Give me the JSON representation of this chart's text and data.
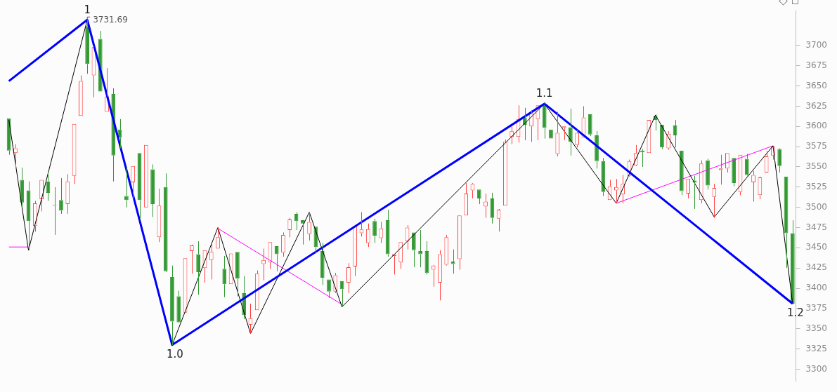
{
  "chart_data": {
    "type": "candlestick",
    "categories": [
      null,
      null,
      null,
      null,
      null,
      null,
      null,
      null,
      null,
      null,
      null,
      null,
      null,
      null,
      null,
      null,
      null,
      null,
      null,
      null,
      null,
      null,
      null,
      null,
      null,
      null,
      null,
      null,
      null,
      null,
      null,
      null,
      null,
      null,
      null,
      null,
      null,
      null,
      null,
      null,
      null,
      null,
      null,
      null,
      null,
      null,
      null,
      null,
      null,
      null,
      null,
      null,
      null,
      null,
      null,
      null,
      null,
      null,
      null,
      null,
      null,
      null,
      null,
      null,
      null,
      null,
      null,
      null,
      null,
      null,
      null,
      null,
      null,
      null,
      null,
      null,
      null,
      null,
      null,
      null,
      null,
      null,
      null,
      null,
      null,
      null,
      null,
      null,
      null,
      null,
      null,
      null,
      null,
      null,
      null,
      null,
      null,
      null,
      null,
      null,
      null,
      null,
      null,
      null,
      null,
      null,
      null,
      null,
      null,
      null,
      null,
      null,
      null,
      null,
      null,
      null,
      null,
      null,
      null,
      null,
      null
    ],
    "ohlc": [
      [
        3610,
        3610,
        3565,
        3570
      ],
      [
        3567,
        3578,
        3548,
        3573
      ],
      [
        3534,
        3549,
        3500,
        3506
      ],
      [
        3521,
        3532,
        3447,
        3483
      ],
      [
        3477,
        3508,
        3470,
        3505
      ],
      [
        3510,
        3534,
        3495,
        3534
      ],
      [
        3532,
        3543,
        3508,
        3518
      ],
      [
        3503,
        3525,
        3466,
        3502
      ],
      [
        3509,
        3536,
        3492,
        3496
      ],
      [
        3504,
        3541,
        3492,
        3532
      ],
      [
        3539,
        3603,
        3529,
        3603
      ],
      [
        3613,
        3663,
        3613,
        3656
      ],
      [
        3724,
        3731.69,
        3665,
        3677
      ],
      [
        3663,
        3699,
        3636,
        3698
      ],
      [
        3708,
        3718,
        3643,
        3643
      ],
      [
        3618,
        3672,
        3618,
        3637
      ],
      [
        3640,
        3647,
        3532,
        3564
      ],
      [
        3596,
        3609,
        3573,
        3586
      ],
      [
        3514,
        3550,
        3500,
        3509
      ],
      [
        3531,
        3551,
        3511,
        3551
      ],
      [
        3567,
        3567,
        3485,
        3509
      ],
      [
        3500,
        3577,
        3500,
        3577
      ],
      [
        3547,
        3553,
        3488,
        3504
      ],
      [
        3463,
        3523,
        3457,
        3502
      ],
      [
        3525,
        3542,
        3420,
        3421
      ],
      [
        3414,
        3428,
        3330,
        3359
      ],
      [
        3390,
        3397,
        3357,
        3358
      ],
      [
        3370,
        3437,
        3370,
        3437
      ],
      [
        3446,
        3454,
        3418,
        3453
      ],
      [
        3442,
        3458,
        3392,
        3420
      ],
      [
        3425,
        3447,
        3407,
        3447
      ],
      [
        3435,
        3454,
        3411,
        3445
      ],
      [
        3449,
        3475,
        3449,
        3463
      ],
      [
        3424,
        3440,
        3389,
        3405
      ],
      [
        3405,
        3443,
        3405,
        3443
      ],
      [
        3445,
        3445,
        3390,
        3412
      ],
      [
        3394,
        3415,
        3362,
        3367
      ],
      [
        3355,
        3381,
        3344,
        3363
      ],
      [
        3373,
        3422,
        3373,
        3418
      ],
      [
        3430,
        3449,
        3410,
        3435
      ],
      [
        3432,
        3457,
        3424,
        3457
      ],
      [
        3452,
        3452,
        3421,
        3442
      ],
      [
        3444,
        3469,
        3439,
        3466
      ],
      [
        3472,
        3487,
        3463,
        3485
      ],
      [
        3492,
        3494,
        3472,
        3483
      ],
      [
        3484,
        3484,
        3454,
        3480
      ],
      [
        3467,
        3494,
        3459,
        3482
      ],
      [
        3476,
        3476,
        3443,
        3451
      ],
      [
        3446,
        3456,
        3404,
        3413
      ],
      [
        3411,
        3411,
        3388,
        3396
      ],
      [
        3396,
        3419,
        3394,
        3416
      ],
      [
        3409,
        3409,
        3377,
        3399
      ],
      [
        3407,
        3431,
        3394,
        3426
      ],
      [
        3427,
        3477,
        3415,
        3477
      ],
      [
        3468,
        3494,
        3464,
        3473
      ],
      [
        3456,
        3480,
        3451,
        3473
      ],
      [
        3483,
        3486,
        3456,
        3465
      ],
      [
        3462,
        3482,
        3456,
        3474
      ],
      [
        3484,
        3497,
        3439,
        3442
      ],
      [
        3440,
        3442,
        3417,
        3442
      ],
      [
        3432,
        3457,
        3424,
        3457
      ],
      [
        3458,
        3478,
        3448,
        3475
      ],
      [
        3469,
        3469,
        3426,
        3447
      ],
      [
        3446,
        3472,
        3426,
        3442
      ],
      [
        3446,
        3458,
        3417,
        3419
      ],
      [
        3423,
        3429,
        3402,
        3428
      ],
      [
        3407,
        3447,
        3385,
        3442
      ],
      [
        3429,
        3466,
        3428,
        3463
      ],
      [
        3433,
        3448,
        3418,
        3430
      ],
      [
        3436,
        3490,
        3423,
        3490
      ],
      [
        3490,
        3530,
        3490,
        3517
      ],
      [
        3521,
        3530,
        3511,
        3529
      ],
      [
        3522,
        3522,
        3504,
        3511
      ],
      [
        3501,
        3517,
        3487,
        3507
      ],
      [
        3511,
        3518,
        3480,
        3487
      ],
      [
        3486,
        3498,
        3470,
        3497
      ],
      [
        3502,
        3584,
        3502,
        3581
      ],
      [
        3587,
        3600,
        3578,
        3594
      ],
      [
        3587,
        3626,
        3580,
        3609
      ],
      [
        3611,
        3623,
        3583,
        3602
      ],
      [
        3600,
        3620,
        3581,
        3616
      ],
      [
        3609,
        3626,
        3583,
        3626
      ],
      [
        3627,
        3630,
        3585,
        3598
      ],
      [
        3596,
        3596,
        3585,
        3585
      ],
      [
        3566,
        3618,
        3563,
        3592
      ],
      [
        3598,
        3600,
        3583,
        3600
      ],
      [
        3599,
        3622,
        3564,
        3581
      ],
      [
        3577,
        3596,
        3574,
        3592
      ],
      [
        3586,
        3625,
        3586,
        3611
      ],
      [
        3615,
        3615,
        3588,
        3590
      ],
      [
        3589,
        3594,
        3548,
        3557
      ],
      [
        3557,
        3561,
        3514,
        3519
      ],
      [
        3509,
        3534,
        3509,
        3526
      ],
      [
        3521,
        3535,
        3505,
        3525
      ],
      [
        3516,
        3540,
        3505,
        3529
      ],
      [
        3539,
        3559,
        3538,
        3557
      ],
      [
        3552,
        3577,
        3551,
        3567
      ],
      [
        3570,
        3572,
        3550,
        3568
      ],
      [
        3567,
        3608,
        3567,
        3608
      ],
      [
        3613,
        3615,
        3595,
        3608
      ],
      [
        3602,
        3602,
        3572,
        3574
      ],
      [
        3573,
        3594,
        3571,
        3591
      ],
      [
        3601,
        3608,
        3574,
        3589
      ],
      [
        3570,
        3570,
        3515,
        3520
      ],
      [
        3517,
        3535,
        3511,
        3535
      ],
      [
        3533,
        3539,
        3498,
        3531
      ],
      [
        3509,
        3558,
        3505,
        3554
      ],
      [
        3558,
        3560,
        3522,
        3527
      ],
      [
        3513,
        3529,
        3487,
        3524
      ],
      [
        3546,
        3565,
        3528,
        3548
      ],
      [
        3548,
        3567,
        3543,
        3567
      ],
      [
        3561,
        3561,
        3526,
        3530
      ],
      [
        3519,
        3565,
        3515,
        3565
      ],
      [
        3560,
        3566,
        3539,
        3540
      ],
      [
        3531,
        3545,
        3507,
        3540
      ],
      [
        3515,
        3538,
        3510,
        3537
      ],
      [
        3543,
        3569,
        3543,
        3563
      ],
      [
        3564,
        3576,
        3559,
        3575
      ],
      [
        3572,
        3573,
        3543,
        3551
      ],
      [
        3538,
        3538,
        3425,
        3468
      ],
      [
        3468,
        3484,
        3380,
        3381
      ]
    ],
    "colors": [
      "#339933",
      "#ff4040",
      "#339933",
      "#339933",
      "#ff4040",
      "#ff4040",
      "#339933",
      "#339933",
      "#339933",
      "#ff4040",
      "#ff4040",
      "#ff4040",
      "#339933",
      "#ff4040",
      "#339933",
      "#ff4040",
      "#339933",
      "#339933",
      "#339933",
      "#ff4040",
      "#339933",
      "#ff4040",
      "#339933",
      "#ff4040",
      "#339933",
      "#339933",
      "#339933",
      "#ff4040",
      "#ff4040",
      "#339933",
      "#ff4040",
      "#ff4040",
      "#ff4040",
      "#339933",
      "#ff4040",
      "#339933",
      "#339933",
      "#ff4040",
      "#ff4040",
      "#ff4040",
      "#ff4040",
      "#339933",
      "#ff4040",
      "#ff4040",
      "#339933",
      "#339933",
      "#ff4040",
      "#339933",
      "#339933",
      "#339933",
      "#ff4040",
      "#339933",
      "#ff4040",
      "#ff4040",
      "#ff4040",
      "#ff4040",
      "#339933",
      "#ff4040",
      "#339933",
      "#ff4040",
      "#ff4040",
      "#ff4040",
      "#339933",
      "#339933",
      "#339933",
      "#ff4040",
      "#ff4040",
      "#ff4040",
      "#339933",
      "#ff4040",
      "#ff4040",
      "#ff4040",
      "#339933",
      "#ff4040",
      "#339933",
      "#ff4040",
      "#ff4040",
      "#ff4040",
      "#ff4040",
      "#339933",
      "#ff4040",
      "#ff4040",
      "#339933",
      "#339933",
      "#ff4040",
      "#ff4040",
      "#339933",
      "#ff4040",
      "#ff4040",
      "#339933",
      "#339933",
      "#339933",
      "#ff4040",
      "#ff4040",
      "#ff4040",
      "#ff4040",
      "#ff4040",
      "#339933",
      "#ff4040",
      "#339933",
      "#339933",
      "#ff4040",
      "#339933",
      "#339933",
      "#ff4040",
      "#339933",
      "#ff4040",
      "#339933",
      "#ff4040",
      "#ff4040",
      "#ff4040",
      "#339933",
      "#ff4040",
      "#339933",
      "#ff4040",
      "#ff4040",
      "#ff4040",
      "#ff4040",
      "#339933",
      "#339933",
      "#339933"
    ],
    "value_labels": [
      null,
      null,
      null,
      null,
      null,
      null,
      null,
      null,
      null,
      null,
      null,
      null,
      "3731.69",
      null,
      null,
      null,
      null,
      null,
      null,
      null,
      null,
      null,
      null,
      null,
      null,
      null,
      null,
      null,
      null,
      null,
      null,
      null,
      null,
      null,
      null,
      null,
      null,
      null,
      null,
      null,
      null,
      null,
      null,
      null,
      null,
      null,
      null,
      null,
      null,
      null,
      null,
      null,
      null,
      null,
      null,
      null,
      null,
      null,
      null,
      null,
      null,
      null,
      null,
      null,
      null,
      null,
      null,
      null,
      null,
      null,
      null,
      null,
      null,
      null,
      null,
      null,
      null,
      null,
      null,
      null,
      null,
      null,
      null,
      null,
      null,
      null,
      null,
      null,
      null,
      null,
      null,
      null,
      null,
      null,
      null,
      null,
      null,
      null,
      null,
      null,
      null,
      null,
      null,
      null,
      null,
      null,
      null,
      null,
      null,
      null,
      null,
      null,
      null,
      null,
      null,
      null,
      null,
      null,
      null,
      null,
      null
    ],
    "ylim": [
      3285,
      3743
    ],
    "yticks": [
      3300,
      3325,
      3350,
      3375,
      3400,
      3425,
      3450,
      3475,
      3500,
      3525,
      3550,
      3575,
      3600,
      3625,
      3650,
      3675,
      3700
    ],
    "tick_labels": "y",
    "annotations": [
      {
        "text": "1",
        "y": 3731.69
      },
      {
        "text": "1.0",
        "y": 3330
      },
      {
        "text": "1.1",
        "y": 3628
      },
      {
        "text": "1.2",
        "y": 3381
      }
    ],
    "marker": "none",
    "series": [
      {
        "type": "line",
        "color": "#0000ff",
        "values": [
          3656,
          null,
          null,
          null,
          null,
          null,
          null,
          null,
          null,
          null,
          null,
          null,
          3731.69,
          null,
          null,
          null,
          null,
          null,
          null,
          null,
          null,
          null,
          null,
          null,
          null,
          3330,
          null,
          null,
          null,
          null,
          null,
          null,
          null,
          null,
          null,
          null,
          null,
          null,
          null,
          null,
          null,
          null,
          null,
          null,
          null,
          null,
          null,
          null,
          null,
          null,
          null,
          null,
          null,
          null,
          null,
          null,
          null,
          null,
          null,
          null,
          null,
          null,
          null,
          null,
          null,
          null,
          null,
          null,
          null,
          null,
          null,
          null,
          null,
          null,
          null,
          null,
          null,
          null,
          null,
          null,
          null,
          null,
          3628,
          null,
          null,
          null,
          null,
          null,
          null,
          null,
          null,
          null,
          null,
          null,
          null,
          null,
          null,
          null,
          null,
          null,
          null,
          null,
          null,
          null,
          null,
          null,
          null,
          null,
          null,
          null,
          null,
          null,
          null,
          null,
          null,
          null,
          null,
          null,
          null,
          null,
          3381
        ]
      },
      {
        "type": "line",
        "color": "#000000",
        "values": [
          3608,
          null,
          null,
          3447,
          null,
          null,
          null,
          null,
          null,
          null,
          null,
          null,
          3731.69,
          null,
          null,
          null,
          null,
          null,
          null,
          null,
          null,
          null,
          null,
          null,
          null,
          3330,
          null,
          null,
          null,
          null,
          null,
          null,
          3475,
          null,
          null,
          null,
          null,
          3344,
          null,
          null,
          null,
          null,
          null,
          null,
          null,
          null,
          3494,
          null,
          null,
          null,
          null,
          3377,
          null,
          null,
          null,
          null,
          null,
          null,
          null,
          null,
          null,
          null,
          null,
          null,
          null,
          null,
          null,
          null,
          null,
          null,
          null,
          null,
          null,
          null,
          null,
          null,
          null,
          null,
          null,
          null,
          null,
          null,
          3628,
          null,
          null,
          null,
          null,
          null,
          null,
          null,
          null,
          null,
          null,
          3505,
          null,
          null,
          null,
          null,
          null,
          3614,
          null,
          null,
          null,
          null,
          null,
          null,
          null,
          null,
          3488,
          null,
          null,
          null,
          null,
          null,
          null,
          null,
          null,
          3576,
          null,
          null,
          3381
        ]
      },
      {
        "type": "line",
        "color": "#ff00ff",
        "values": [
          3451,
          null,
          null,
          3451,
          null,
          null,
          null,
          null,
          null,
          null,
          null,
          null,
          null,
          null,
          null,
          null,
          null,
          null,
          null,
          null,
          null,
          null,
          null,
          null,
          null,
          null,
          null,
          null,
          null,
          null,
          null,
          null,
          null,
          null,
          null,
          null,
          null,
          null,
          null,
          null,
          null,
          null,
          null,
          null,
          null,
          null,
          null,
          null,
          null,
          null,
          null,
          null,
          null,
          null,
          null,
          null,
          null,
          null,
          null,
          null,
          null,
          null,
          null,
          null,
          null,
          null,
          null,
          null,
          null,
          null,
          null,
          null,
          null,
          null,
          null,
          null,
          null,
          null,
          null,
          null,
          null,
          null,
          null,
          null,
          null,
          null,
          null,
          null,
          null,
          null,
          null,
          null,
          null,
          null,
          null,
          null,
          null,
          null,
          null,
          null,
          null,
          null,
          null,
          null,
          null,
          null,
          null,
          null,
          null,
          null,
          null,
          null,
          null,
          null,
          null,
          null,
          null,
          null,
          null,
          null,
          null
        ]
      },
      {
        "type": "line",
        "color": "#ff00ff",
        "values": [
          null,
          null,
          null,
          null,
          null,
          null,
          null,
          null,
          null,
          null,
          null,
          null,
          null,
          null,
          null,
          null,
          null,
          null,
          null,
          null,
          null,
          null,
          null,
          null,
          null,
          null,
          null,
          null,
          null,
          null,
          null,
          null,
          3474,
          null,
          null,
          null,
          null,
          null,
          null,
          null,
          null,
          null,
          null,
          null,
          null,
          null,
          null,
          null,
          null,
          null,
          null,
          3380,
          null,
          null,
          null,
          null,
          null,
          null,
          null,
          null,
          null,
          null,
          null,
          null,
          null,
          null,
          null,
          null,
          null,
          null,
          null,
          null,
          null,
          null,
          null,
          null,
          null,
          null,
          null,
          null,
          null,
          null,
          null,
          null,
          null,
          null,
          null,
          null,
          null,
          null,
          null,
          null,
          null,
          null,
          null,
          null,
          null,
          null,
          null,
          null,
          null,
          null,
          null,
          null,
          null,
          null,
          null,
          null,
          null,
          null,
          null,
          null,
          null,
          null,
          null,
          null,
          null,
          null,
          null,
          null,
          null
        ]
      },
      {
        "type": "line",
        "color": "#ff00ff",
        "values": [
          null,
          null,
          null,
          null,
          null,
          null,
          null,
          null,
          null,
          null,
          null,
          null,
          null,
          null,
          null,
          null,
          null,
          null,
          null,
          null,
          null,
          null,
          null,
          null,
          null,
          null,
          null,
          null,
          null,
          null,
          null,
          null,
          null,
          null,
          null,
          null,
          null,
          null,
          null,
          null,
          null,
          null,
          null,
          null,
          null,
          null,
          null,
          null,
          null,
          null,
          null,
          null,
          null,
          null,
          null,
          null,
          null,
          null,
          null,
          null,
          null,
          null,
          null,
          null,
          null,
          null,
          null,
          null,
          null,
          null,
          null,
          null,
          null,
          null,
          null,
          null,
          null,
          null,
          null,
          null,
          null,
          null,
          null,
          null,
          null,
          null,
          null,
          null,
          null,
          null,
          null,
          null,
          null,
          3505,
          null,
          null,
          null,
          null,
          null,
          null,
          null,
          null,
          null,
          null,
          null,
          null,
          null,
          null,
          null,
          null,
          null,
          null,
          null,
          null,
          null,
          null,
          null,
          3576,
          null,
          null,
          null
        ]
      }
    ]
  }
}
